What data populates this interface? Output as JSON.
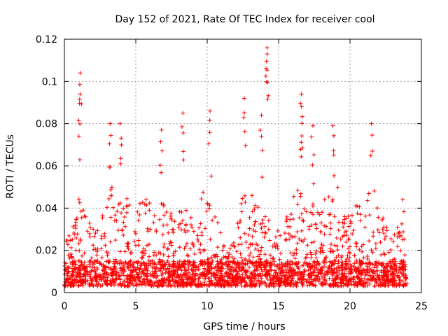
{
  "chart_data": {
    "type": "scatter",
    "title": "Day 152 of 2021, Rate Of TEC Index for receiver cool",
    "xlabel": "GPS time / hours",
    "ylabel": "ROTI / TECUs",
    "xlim": [
      0,
      25
    ],
    "ylim": [
      0,
      0.12
    ],
    "xticks": [
      0,
      5,
      10,
      15,
      20,
      25
    ],
    "xtick_labels": [
      "0",
      "5",
      "10",
      "15",
      "20",
      "25"
    ],
    "yticks": [
      0,
      0.02,
      0.04,
      0.06,
      0.08,
      0.1,
      0.12
    ],
    "ytick_labels": [
      "0",
      "0.02",
      "0.04",
      "0.06",
      "0.08",
      "0.1",
      "0.12"
    ],
    "grid": true,
    "marker": "+",
    "color": "#ff0000",
    "data_range_x": [
      0,
      24
    ],
    "notable_peaks": [
      {
        "x": 1.1,
        "y": 0.104
      },
      {
        "x": 1.1,
        "y": 0.094
      },
      {
        "x": 3.2,
        "y": 0.08
      },
      {
        "x": 3.9,
        "y": 0.08
      },
      {
        "x": 6.8,
        "y": 0.077
      },
      {
        "x": 8.3,
        "y": 0.085
      },
      {
        "x": 10.2,
        "y": 0.086
      },
      {
        "x": 12.6,
        "y": 0.092
      },
      {
        "x": 13.8,
        "y": 0.084
      },
      {
        "x": 14.2,
        "y": 0.116
      },
      {
        "x": 14.2,
        "y": 0.113
      },
      {
        "x": 16.6,
        "y": 0.094
      },
      {
        "x": 16.6,
        "y": 0.088
      },
      {
        "x": 17.4,
        "y": 0.079
      },
      {
        "x": 18.8,
        "y": 0.079
      },
      {
        "x": 21.5,
        "y": 0.08
      },
      {
        "x": 23.7,
        "y": 0.044
      }
    ],
    "series": [
      {
        "name": "ROTI",
        "envelope": [
          {
            "x": 0,
            "y": 0.022
          },
          {
            "x": 0.5,
            "y": 0.028
          },
          {
            "x": 1.0,
            "y": 0.042
          },
          {
            "x": 1.5,
            "y": 0.034
          },
          {
            "x": 2.0,
            "y": 0.028
          },
          {
            "x": 2.5,
            "y": 0.026
          },
          {
            "x": 3.0,
            "y": 0.05
          },
          {
            "x": 3.5,
            "y": 0.048
          },
          {
            "x": 4.0,
            "y": 0.052
          },
          {
            "x": 4.5,
            "y": 0.04
          },
          {
            "x": 5.0,
            "y": 0.036
          },
          {
            "x": 5.5,
            "y": 0.044
          },
          {
            "x": 6.0,
            "y": 0.04
          },
          {
            "x": 6.5,
            "y": 0.036
          },
          {
            "x": 7.0,
            "y": 0.046
          },
          {
            "x": 7.5,
            "y": 0.034
          },
          {
            "x": 8.0,
            "y": 0.036
          },
          {
            "x": 8.5,
            "y": 0.038
          },
          {
            "x": 9.0,
            "y": 0.04
          },
          {
            "x": 9.5,
            "y": 0.042
          },
          {
            "x": 10.0,
            "y": 0.048
          },
          {
            "x": 10.5,
            "y": 0.04
          },
          {
            "x": 11.0,
            "y": 0.024
          },
          {
            "x": 11.5,
            "y": 0.02
          },
          {
            "x": 12.0,
            "y": 0.026
          },
          {
            "x": 12.5,
            "y": 0.05
          },
          {
            "x": 13.0,
            "y": 0.046
          },
          {
            "x": 13.5,
            "y": 0.04
          },
          {
            "x": 14.0,
            "y": 0.042
          },
          {
            "x": 14.5,
            "y": 0.034
          },
          {
            "x": 15.0,
            "y": 0.03
          },
          {
            "x": 15.5,
            "y": 0.032
          },
          {
            "x": 16.0,
            "y": 0.044
          },
          {
            "x": 16.5,
            "y": 0.05
          },
          {
            "x": 17.0,
            "y": 0.036
          },
          {
            "x": 17.5,
            "y": 0.04
          },
          {
            "x": 18.0,
            "y": 0.04
          },
          {
            "x": 18.5,
            "y": 0.056
          },
          {
            "x": 19.0,
            "y": 0.054
          },
          {
            "x": 19.5,
            "y": 0.038
          },
          {
            "x": 20.0,
            "y": 0.034
          },
          {
            "x": 20.5,
            "y": 0.04
          },
          {
            "x": 21.0,
            "y": 0.034
          },
          {
            "x": 21.5,
            "y": 0.052
          },
          {
            "x": 22.0,
            "y": 0.04
          },
          {
            "x": 22.5,
            "y": 0.03
          },
          {
            "x": 23.0,
            "y": 0.024
          },
          {
            "x": 23.5,
            "y": 0.03
          },
          {
            "x": 24.0,
            "y": 0.018
          }
        ]
      }
    ]
  }
}
